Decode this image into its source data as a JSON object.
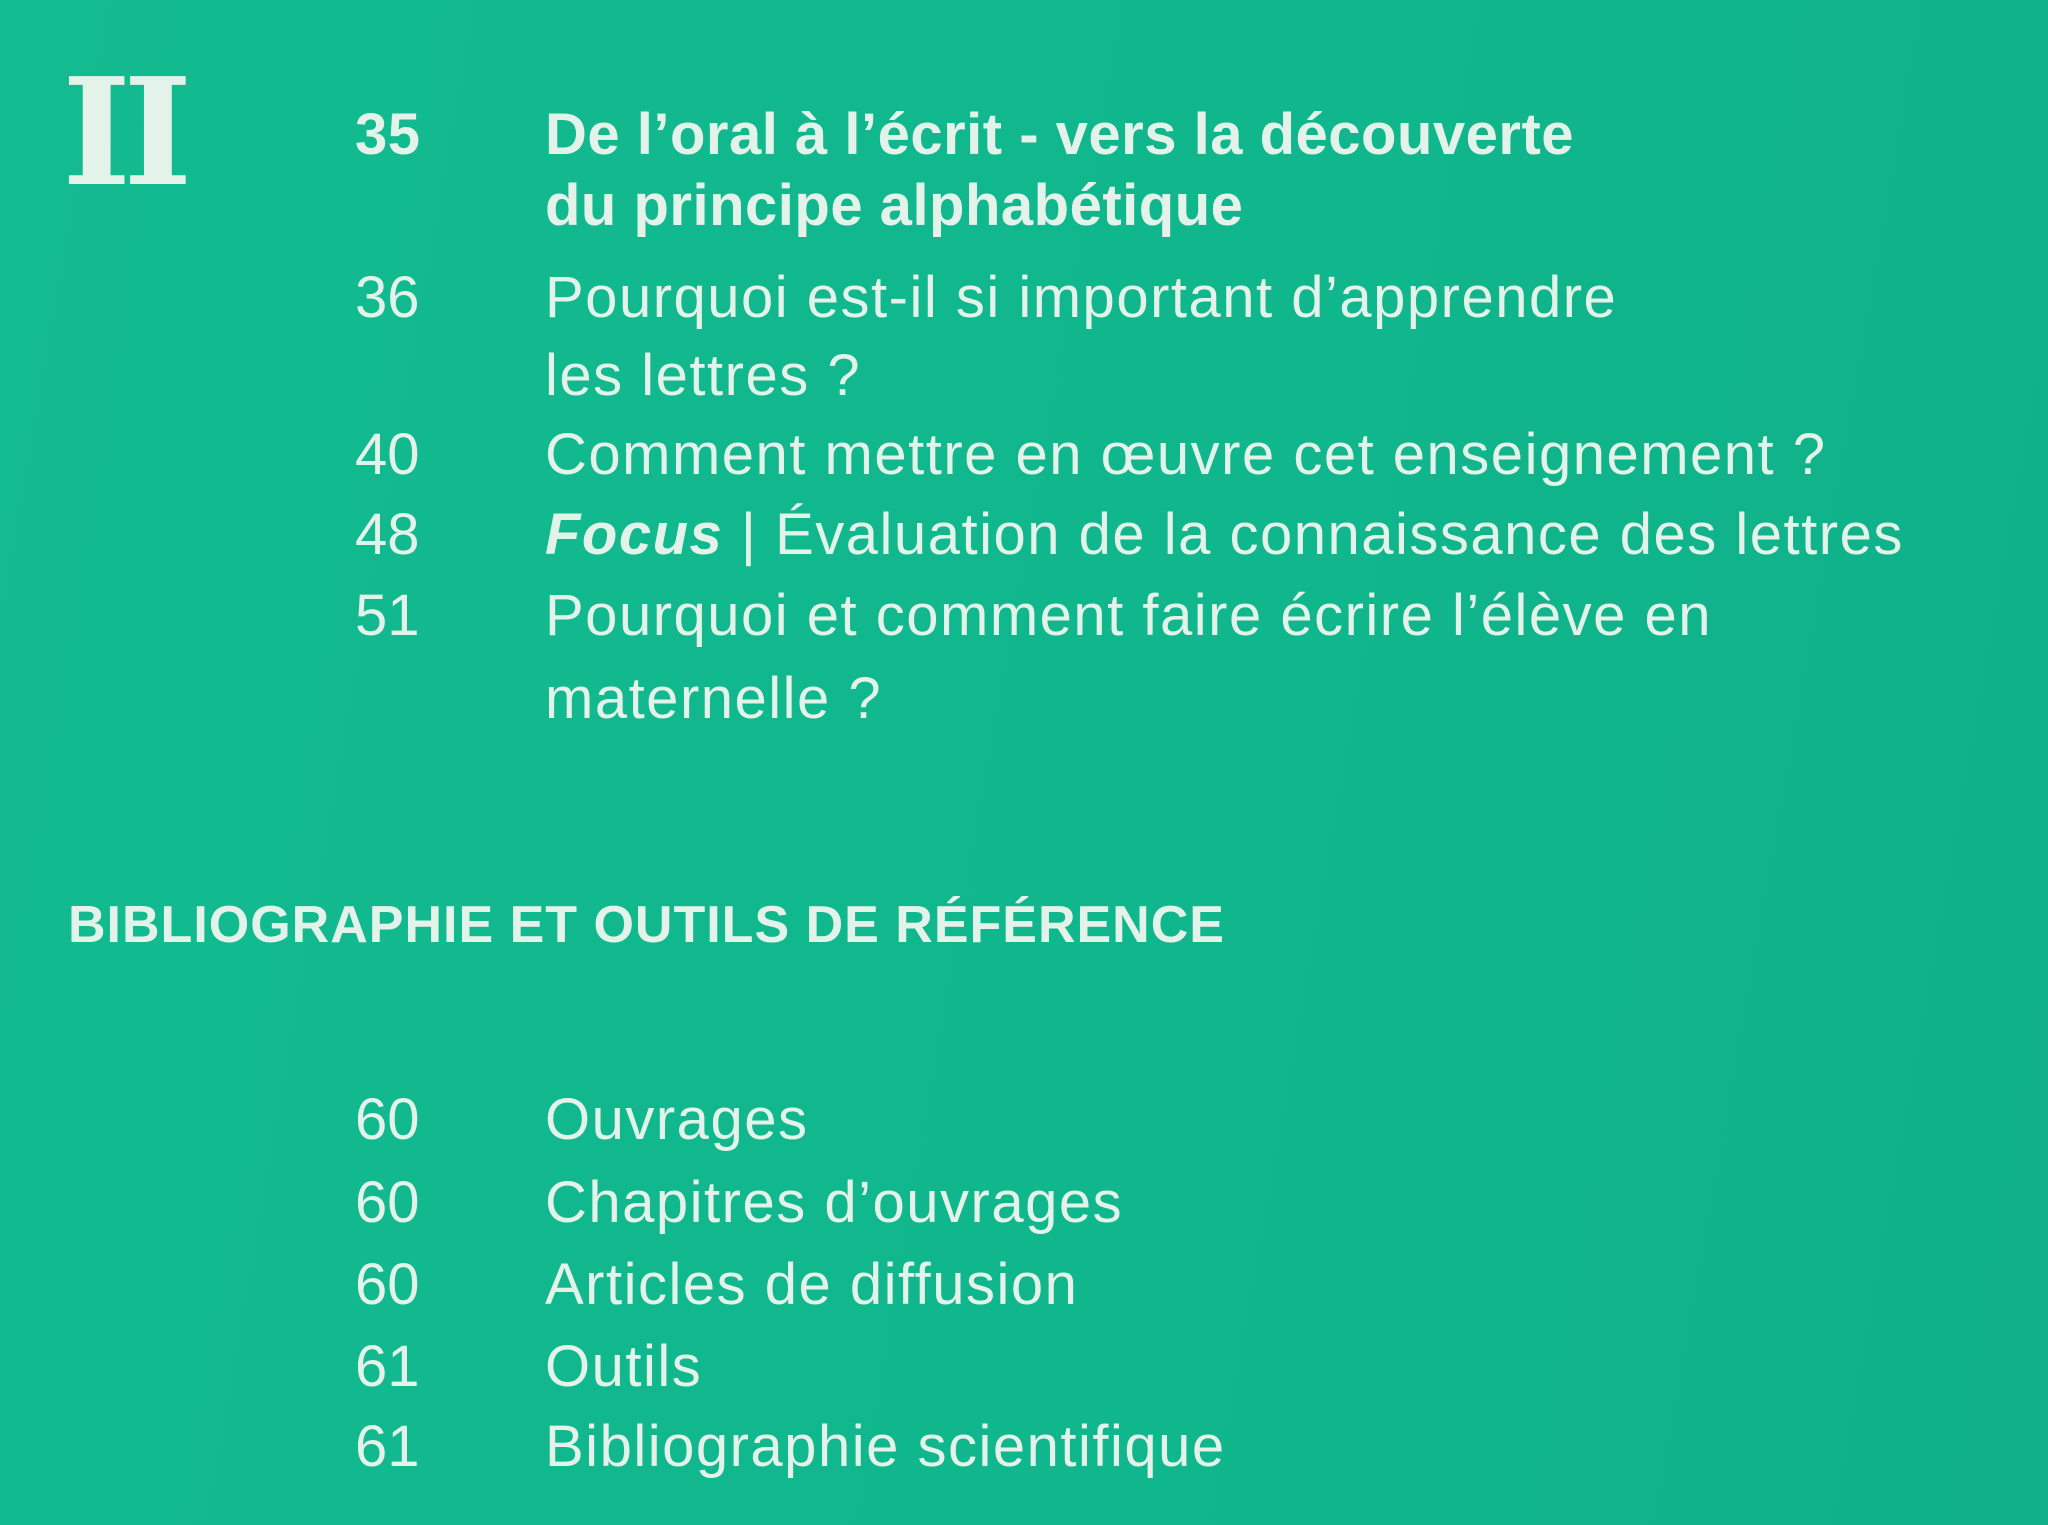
{
  "section_numeral": "II",
  "section_entries": [
    {
      "page": "35",
      "lines": [
        "De l’oral à l’écrit - vers la découverte",
        "du principe alphabétique"
      ],
      "bold": true
    },
    {
      "page": "36",
      "lines": [
        "Pourquoi est-il si important d’apprendre",
        "les lettres ?"
      ]
    },
    {
      "page": "40",
      "lines": [
        "Comment mettre en œuvre cet enseignement ?"
      ]
    },
    {
      "page": "48",
      "focus_label": "Focus",
      "lines": [
        " | Évaluation de la connaissance des lettres"
      ]
    },
    {
      "page": "51",
      "lines": [
        "Pourquoi et comment faire écrire l’élève en",
        "maternelle ?"
      ]
    }
  ],
  "bibliography": {
    "heading": "BIBLIOGRAPHIE ET OUTILS DE RÉFÉRENCE",
    "entries": [
      {
        "page": "60",
        "label": "Ouvrages"
      },
      {
        "page": "60",
        "label": "Chapitres d’ouvrages"
      },
      {
        "page": "60",
        "label": "Articles de diffusion"
      },
      {
        "page": "61",
        "label": "Outils"
      },
      {
        "page": "61",
        "label": "Bibliographie scientifique"
      }
    ]
  },
  "colors": {
    "background": "#11b88e",
    "text": "#e4f3ea"
  }
}
